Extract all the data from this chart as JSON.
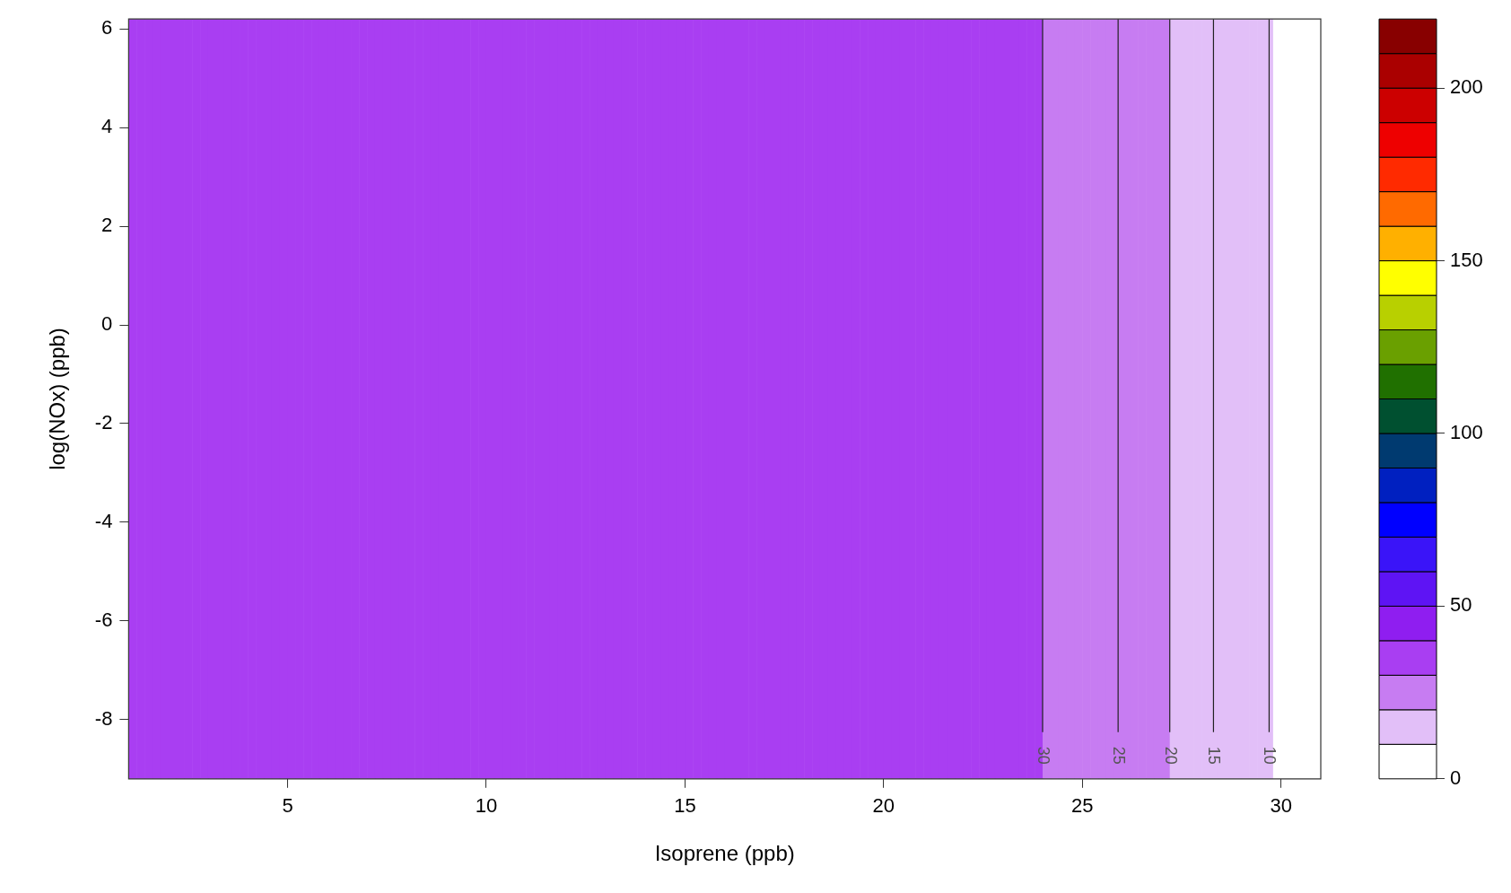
{
  "chart_data": {
    "type": "heatmap",
    "xlabel": "Isoprene (ppb)",
    "ylabel": "log(NOx) (ppb)",
    "cells": [
      [
        35,
        35,
        35,
        35,
        35,
        35,
        35,
        35,
        35,
        35,
        35,
        35,
        35,
        35,
        35,
        35,
        35,
        35,
        35,
        35,
        35,
        35,
        35,
        35,
        35,
        35,
        35,
        35,
        35,
        35,
        35,
        35,
        35,
        35,
        35,
        35,
        35,
        35,
        35,
        35,
        35,
        35,
        35,
        35,
        35,
        35,
        35,
        35,
        35,
        35,
        35,
        35,
        35,
        35,
        35,
        35,
        35,
        35,
        35,
        35,
        35,
        35,
        35,
        35,
        35,
        35,
        35,
        35,
        35,
        35,
        35,
        35,
        35,
        35,
        35,
        35,
        35,
        35,
        35,
        35,
        35,
        35,
        35,
        35,
        35,
        35,
        35,
        35,
        35,
        35,
        35,
        35,
        35,
        35,
        35,
        35,
        35,
        35,
        35,
        35,
        35,
        35,
        35,
        35,
        35,
        35,
        35,
        35,
        35,
        35,
        35,
        35,
        35,
        35,
        35,
        25,
        25,
        25,
        25,
        25,
        25,
        25,
        25,
        25,
        25,
        25,
        25,
        25,
        25,
        25,
        25,
        15,
        15,
        15,
        15,
        15,
        15,
        15,
        15,
        15,
        15,
        15,
        15,
        15,
        5,
        5,
        5,
        5,
        5,
        5
      ]
    ],
    "xlim": [
      1,
      31
    ],
    "xticks": [
      5,
      10,
      15,
      20,
      25,
      30
    ],
    "ylim": [
      -9.2,
      6.2
    ],
    "yticks": [
      -8,
      -6,
      -4,
      -2,
      0,
      2,
      4,
      6
    ],
    "clim": [
      0,
      220
    ],
    "cticks": [
      0,
      50,
      100,
      150,
      200
    ],
    "colors": [
      "#ffffff",
      "#e2bff8",
      "#c77cf2",
      "#a93ef2",
      "#8f1ef0",
      "#5e14f4",
      "#3a14f8",
      "#0000ff",
      "#0020c0",
      "#003a70",
      "#005030",
      "#207000",
      "#6aa000",
      "#b8d000",
      "#ffff00",
      "#ffb000",
      "#ff6a00",
      "#ff2a00",
      "#ee0000",
      "#cc0000",
      "#aa0000",
      "#880000"
    ],
    "ref_lines": [
      {
        "axis": "x",
        "value": 24,
        "color": "#222222"
      },
      {
        "axis": "x",
        "value": 25.9,
        "color": "#222222"
      },
      {
        "axis": "x",
        "value": 27.2,
        "color": "#222222"
      },
      {
        "axis": "x",
        "value": 28.3,
        "color": "#222222"
      },
      {
        "axis": "x",
        "value": 29.7,
        "color": "#222222"
      }
    ],
    "annotations": [
      "30",
      "25",
      "20",
      "15",
      "10"
    ],
    "grid": false,
    "legend": false
  }
}
